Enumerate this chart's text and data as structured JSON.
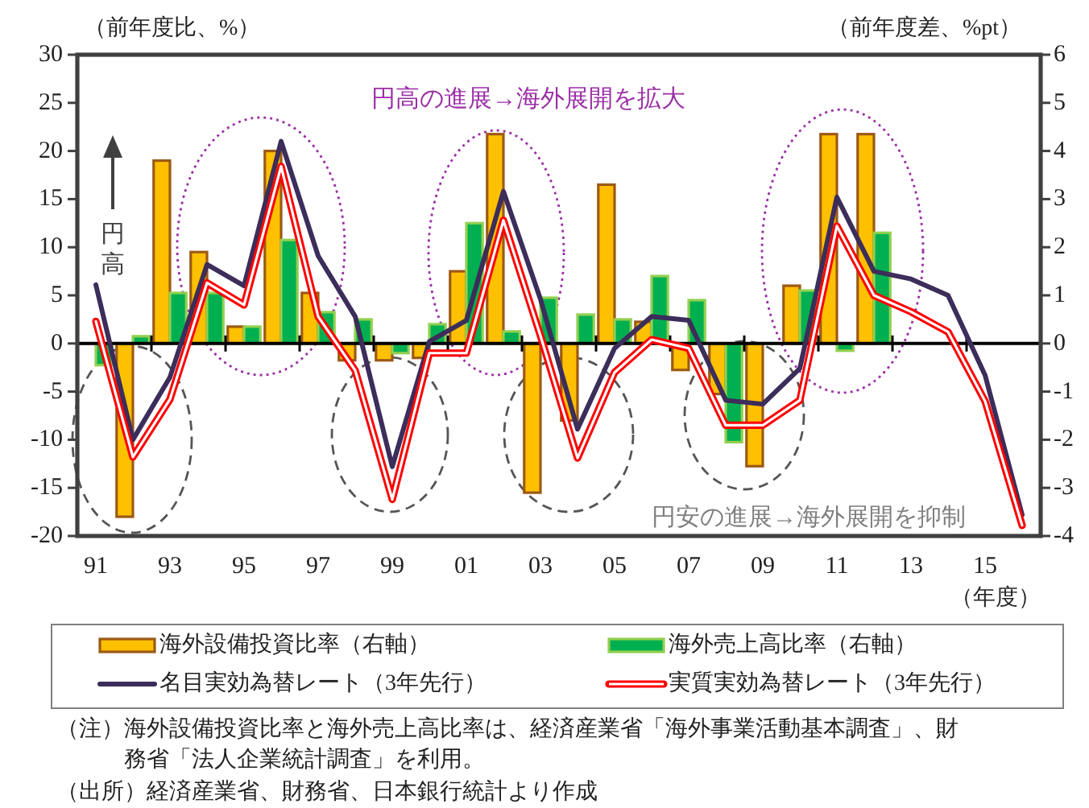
{
  "chart_data": {
    "type": "bar",
    "categories": [
      "91",
      null,
      "93",
      null,
      "95",
      null,
      "97",
      null,
      "99",
      null,
      "01",
      null,
      "03",
      null,
      "05",
      null,
      "07",
      null,
      "09",
      null,
      "11",
      null,
      "13",
      null,
      "15",
      null
    ],
    "series": [
      {
        "name": "海外設備投資比率（右軸）",
        "axis": "y2",
        "color": "#ffc000",
        "values": [
          0,
          -3.6,
          3.8,
          1.9,
          0.35,
          4.0,
          1.05,
          -0.35,
          -0.35,
          -0.3,
          1.5,
          4.35,
          -3.1,
          -1.6,
          3.3,
          0.45,
          -0.55,
          -1.05,
          -2.55,
          1.2,
          4.35,
          4.35,
          null,
          null,
          null,
          null
        ]
      },
      {
        "name": "海外売上高比率（右軸）",
        "axis": "y2",
        "color": "#00b050",
        "values": [
          -0.45,
          0.15,
          1.05,
          1.05,
          0.35,
          2.15,
          0.65,
          0.5,
          -0.2,
          0.4,
          2.5,
          0.25,
          0.95,
          0.6,
          0.5,
          1.4,
          0.9,
          -2.05,
          0,
          1.1,
          -0.15,
          2.3,
          null,
          null,
          null,
          null
        ]
      },
      {
        "name": "名目実効為替レート（3年先行）",
        "type": "line",
        "color": "#3c2d5a",
        "values": [
          6.1,
          -10,
          -3.5,
          8.2,
          6.0,
          21.0,
          9.1,
          2.8,
          -12.8,
          0.2,
          2.4,
          15.8,
          4.6,
          -8.9,
          -0.5,
          2.8,
          2.4,
          -5.9,
          -6.3,
          -2.6,
          15.2,
          7.5,
          6.7,
          5.0,
          -3.3,
          -17.8
        ]
      },
      {
        "name": "実質実効為替レート（3年先行）",
        "type": "line",
        "color": "#ff0000",
        "values": [
          2.3,
          -11.8,
          -5.8,
          6.3,
          4.0,
          18.4,
          2.8,
          -2.8,
          -16.2,
          -1.0,
          -1.0,
          12.8,
          0.8,
          -11.9,
          -3.0,
          0.4,
          -0.5,
          -8.5,
          -8.5,
          -5.9,
          12.2,
          5.0,
          3.3,
          1.2,
          -6.0,
          -18.9
        ]
      }
    ],
    "ylim": [
      -20,
      30
    ],
    "yticks": [
      -20,
      -15,
      -10,
      -5,
      0,
      5,
      10,
      15,
      20,
      25,
      30
    ],
    "y2lim": [
      -4,
      6
    ],
    "y2ticks": [
      -4,
      -3,
      -2,
      -1,
      0,
      1,
      2,
      3,
      4,
      5,
      6
    ],
    "ylabel": "（前年度比、%）",
    "y2label": "（前年度差、%pt）",
    "xlabel": "（年度）",
    "legend": "bottom",
    "annotations": [
      "円高の進展→海外展開を拡大",
      "円安の進展→海外展開を抑制",
      "円高",
      "（注）海外設備投資比率と海外売上高比率は、経済産業省「海外事業活動基本調査」、財務省「法人企業統計調査」を利用。",
      "（出所）経済産業省、財務省、日本銀行統計より作成"
    ]
  }
}
